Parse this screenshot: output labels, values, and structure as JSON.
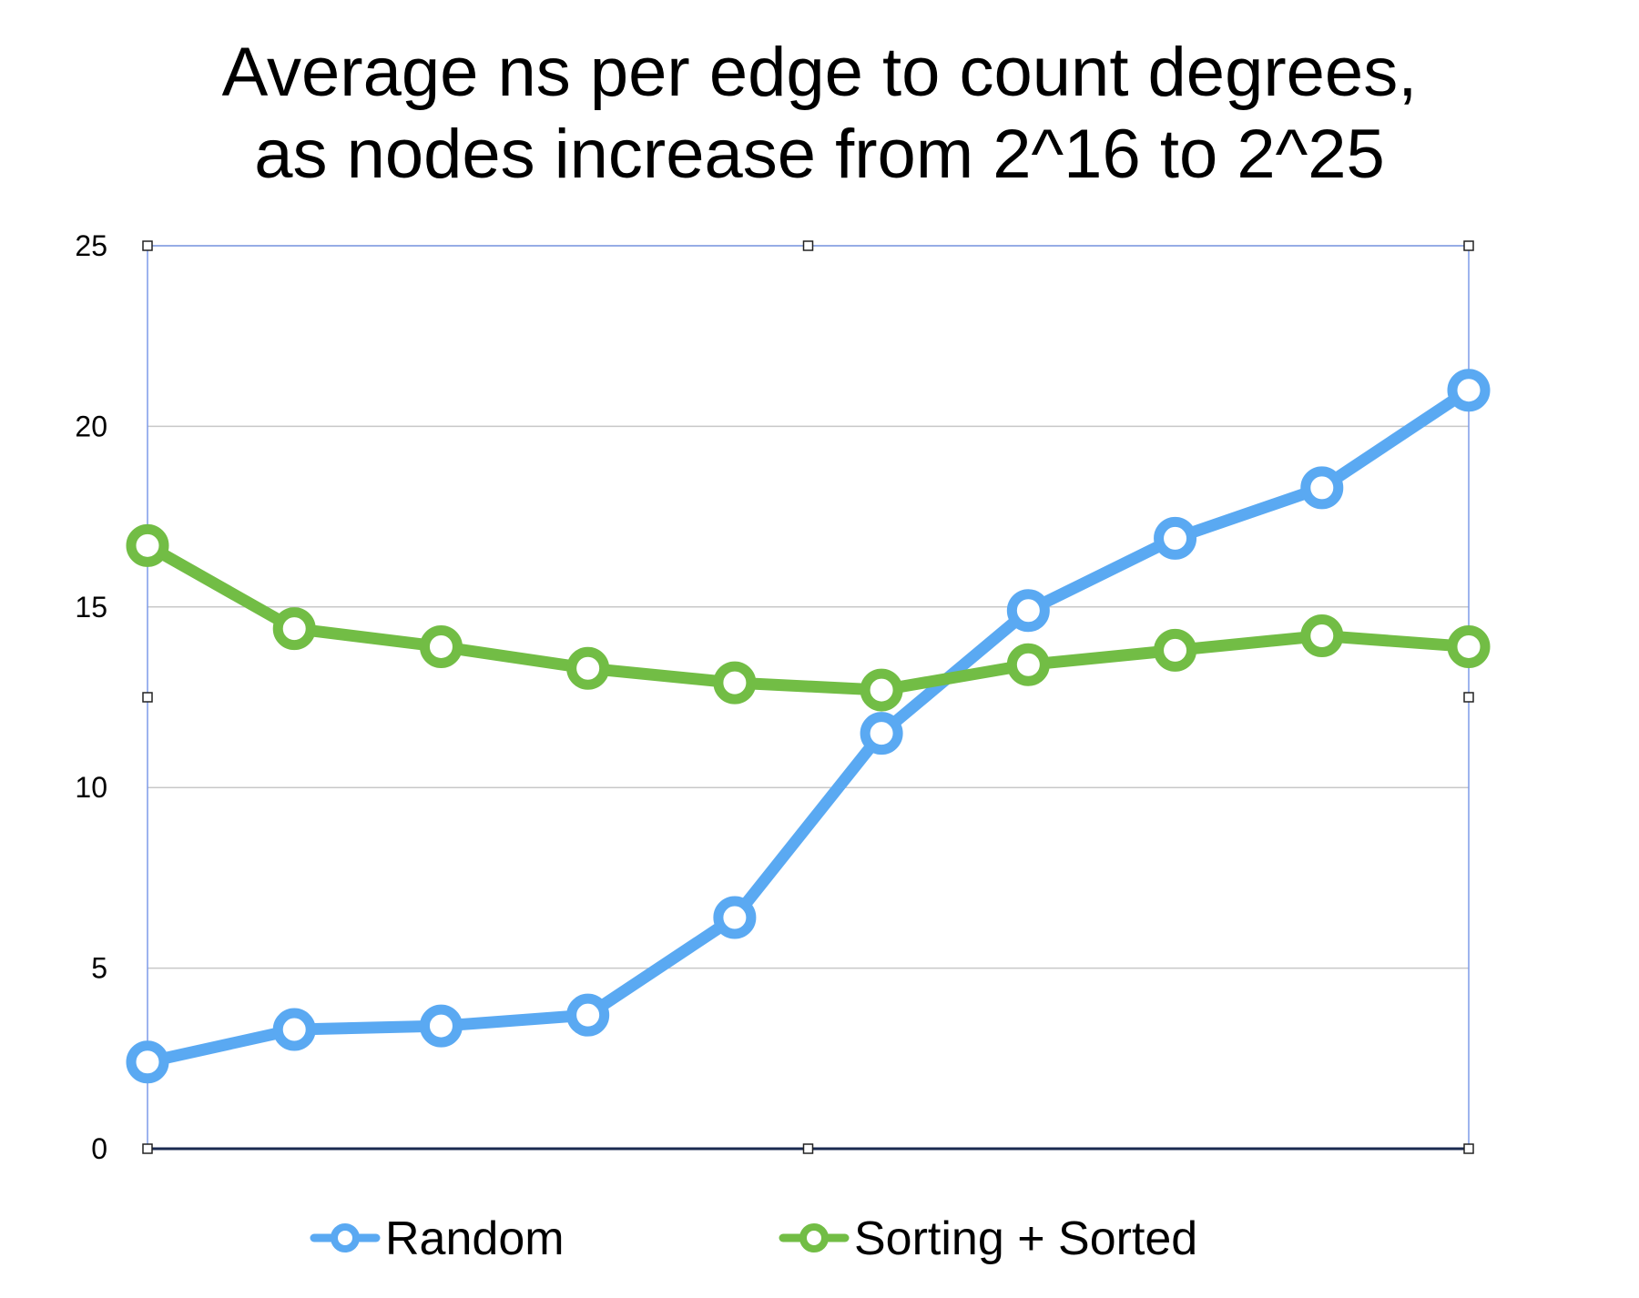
{
  "chart_data": {
    "type": "line",
    "title_line1": "Average ns per edge to count degrees,",
    "title_line2": "as nodes increase from 2^16 to 2^25",
    "xlabel": "",
    "ylabel": "",
    "ylim": [
      0,
      25
    ],
    "yticks": [
      "0",
      "5",
      "10",
      "15",
      "20",
      "25"
    ],
    "x_count": 10,
    "grid": true,
    "legend_position": "bottom",
    "series": [
      {
        "name": "Random",
        "color": "#5aa9f2",
        "values": [
          2.4,
          3.3,
          3.4,
          3.7,
          6.4,
          11.5,
          14.9,
          16.9,
          18.3,
          21.0
        ]
      },
      {
        "name": "Sorting + Sorted",
        "color": "#72bd45",
        "values": [
          16.7,
          14.4,
          13.9,
          13.3,
          12.9,
          12.7,
          13.4,
          13.8,
          14.2,
          13.9
        ]
      }
    ]
  }
}
